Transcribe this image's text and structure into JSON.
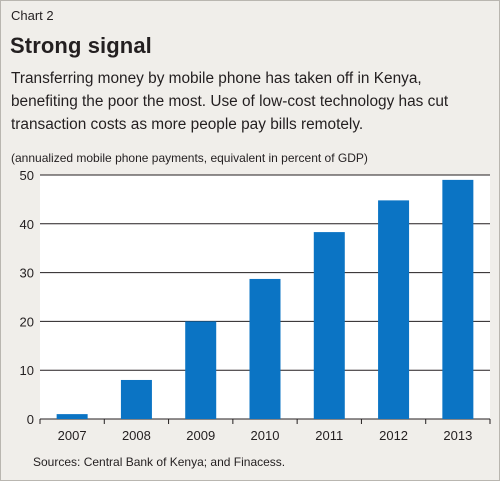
{
  "header": {
    "label": "Chart 2",
    "title": "Strong signal",
    "subtitle": "Transferring money by mobile phone has taken off in Kenya, benefiting the poor the most. Use of low-cost technology has cut transaction costs as more people pay bills remotely.",
    "units": "(annualized mobile phone payments, equivalent in percent of GDP)"
  },
  "footer": {
    "source": "Sources: Central Bank of Kenya; and Finacess."
  },
  "colors": {
    "bar": "#0b74c4",
    "plot_bg": "#ffffff",
    "grid": "#231f20"
  },
  "chart_data": {
    "type": "bar",
    "categories": [
      "2007",
      "2008",
      "2009",
      "2010",
      "2011",
      "2012",
      "2013"
    ],
    "values": [
      1,
      8,
      20,
      28.7,
      38.3,
      44.8,
      49
    ],
    "ylim": [
      0,
      50
    ],
    "yticks": [
      0,
      10,
      20,
      30,
      40,
      50
    ],
    "grid": true,
    "legend": "none"
  }
}
